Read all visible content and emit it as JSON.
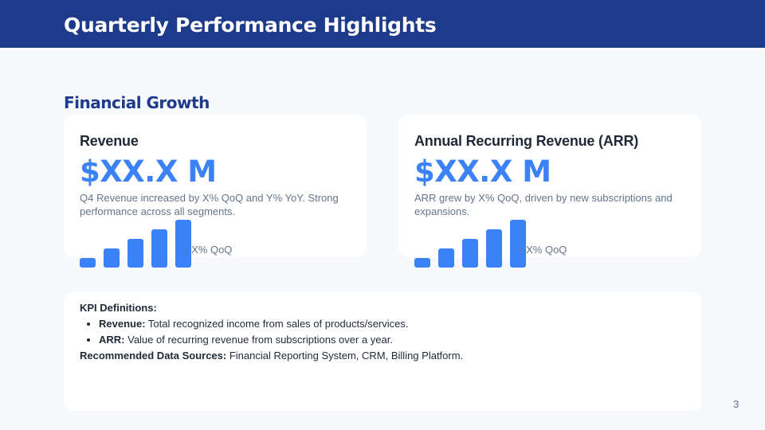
{
  "header": {
    "title": "Quarterly Performance Highlights"
  },
  "section": {
    "title": "Financial Growth"
  },
  "cards": [
    {
      "title": "Revenue",
      "value": "$XX.X M",
      "description": "Q4 Revenue increased by X% QoQ and Y% YoY. Strong performance across all segments.",
      "trend": "↑ X% QoQ",
      "bar_levels": [
        1,
        2,
        3,
        4,
        5
      ]
    },
    {
      "title": "Annual Recurring Revenue (ARR)",
      "value": "$XX.X M",
      "description": "ARR grew by X% QoQ, driven by new subscriptions and expansions.",
      "trend": "↑ X% QoQ",
      "bar_levels": [
        1,
        2,
        3,
        4,
        5
      ]
    }
  ],
  "kpi": {
    "heading": "KPI Definitions:",
    "items": [
      {
        "term": "Revenue:",
        "definition": " Total recognized income from sales of products/services."
      },
      {
        "term": "ARR:",
        "definition": " Value of recurring revenue from subscriptions over a year."
      }
    ],
    "sources_label": "Recommended Data Sources:",
    "sources": " Financial Reporting System, CRM, Billing Platform."
  },
  "page_number": "3",
  "colors": {
    "header": "#1e3a8a",
    "accent": "#3b82f6"
  }
}
